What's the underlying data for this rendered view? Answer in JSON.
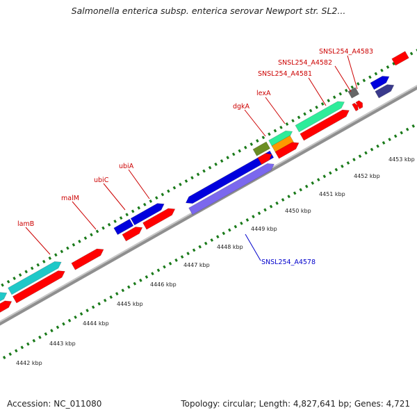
{
  "title": "Salmonella enterica subsp. enterica serovar Newport str. SL2...",
  "footer": {
    "accession": "Accession: NC_011080",
    "summary": "Topology: circular; Length: 4,827,641 bp; Genes: 4,721"
  },
  "scale_labels": [
    "4442 kbp",
    "4443 kbp",
    "4444 kbp",
    "4445 kbp",
    "4446 kbp",
    "4447 kbp",
    "4448 kbp",
    "4449 kbp",
    "4450 kbp",
    "4451 kbp",
    "4452 kbp",
    "4453 kbp"
  ],
  "gene_labels": [
    {
      "name": "lamB",
      "color": "#cc0000"
    },
    {
      "name": "malM",
      "color": "#cc0000"
    },
    {
      "name": "ubiC",
      "color": "#cc0000"
    },
    {
      "name": "ubiA",
      "color": "#cc0000"
    },
    {
      "name": "dgkA",
      "color": "#cc0000"
    },
    {
      "name": "lexA",
      "color": "#cc0000"
    },
    {
      "name": "SNSL254_A4581",
      "color": "#cc0000"
    },
    {
      "name": "SNSL254_A4582",
      "color": "#cc0000"
    },
    {
      "name": "SNSL254_A4583",
      "color": "#cc0000"
    },
    {
      "name": "SNSL254_A4578",
      "color": "#0000cc"
    }
  ],
  "colors": {
    "cds_red": "#ff0000",
    "cds_cyan": "#1fc8c8",
    "cds_blue": "#0000dd",
    "cds_lavender": "#7b68ee",
    "cds_green": "#2eec9a",
    "cds_olive": "#6b8e23",
    "cds_orange": "#ff9900",
    "cds_gray": "#666666",
    "cds_navy": "#3a3a8c",
    "backbone": "#999999",
    "tick": "#1a7a1a"
  }
}
